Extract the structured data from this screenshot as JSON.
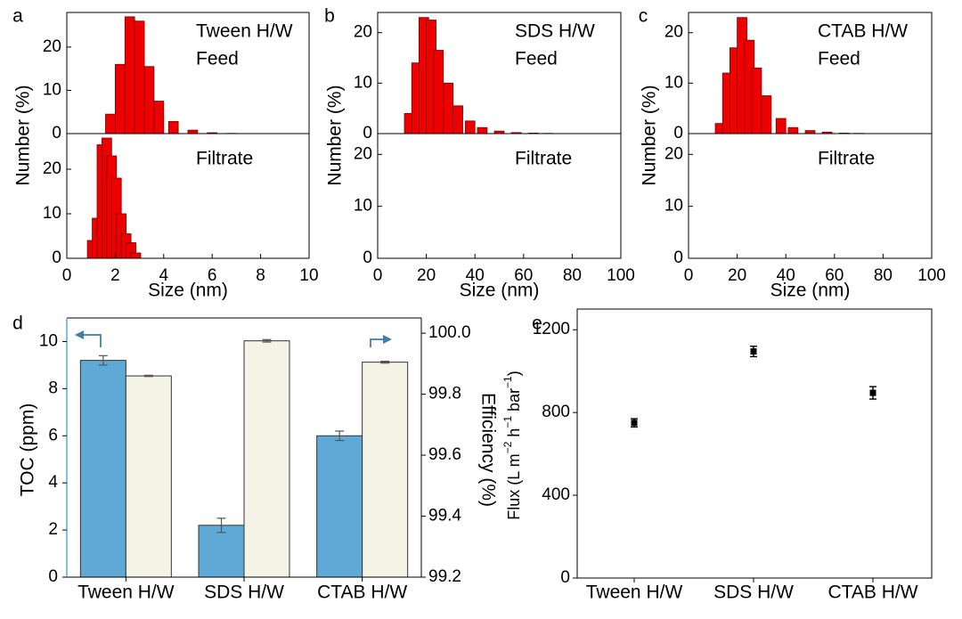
{
  "colors": {
    "hist_bar": "#ee0000",
    "hist_stroke": "#7a0000",
    "toc_bar": "#5ea9d6",
    "eff_bar": "#f4f4e6",
    "arrow": "#3f7fa8",
    "axis": "#000000"
  },
  "chart_data": [
    {
      "panel": "a",
      "type": "bar",
      "title_lines": [
        "Tween H/W",
        "Feed"
      ],
      "lower_title": "Filtrate",
      "xlabel": "Size (nm)",
      "ylabel": "Number (%)",
      "xlim": [
        0,
        10
      ],
      "xticks": [
        0,
        2,
        4,
        6,
        8,
        10
      ],
      "ylim": [
        0,
        28
      ],
      "yticks": [
        0,
        10,
        20
      ],
      "bin_width": 0.4,
      "feed": {
        "x": [
          1.8,
          2.2,
          2.6,
          3.0,
          3.4,
          3.8,
          4.4,
          5.2,
          6.0,
          6.8
        ],
        "values": [
          4.5,
          16,
          27,
          26,
          15.5,
          7.5,
          2.8,
          0.8,
          0.2,
          0.05
        ]
      },
      "filtrate": {
        "x": [
          1.05,
          1.25,
          1.45,
          1.65,
          1.85,
          2.05,
          2.25,
          2.45,
          2.65,
          2.85
        ],
        "values": [
          4,
          9,
          25.5,
          27,
          23,
          18,
          10,
          5.5,
          3.5,
          1.2
        ]
      }
    },
    {
      "panel": "b",
      "type": "bar",
      "title_lines": [
        "SDS H/W",
        "Feed"
      ],
      "lower_title": "Filtrate",
      "xlabel": "Size (nm)",
      "ylabel": "Number (%)",
      "xlim": [
        0,
        100
      ],
      "xticks": [
        0,
        20,
        40,
        60,
        80,
        100
      ],
      "ylim": [
        0,
        24
      ],
      "yticks": [
        0,
        10,
        20
      ],
      "bin_width": 4,
      "feed": {
        "x": [
          13,
          16,
          19,
          22,
          25,
          29,
          33,
          38,
          43,
          50,
          57,
          64,
          70
        ],
        "values": [
          4,
          14,
          23,
          22.5,
          16.5,
          10,
          5.5,
          2.5,
          1.2,
          0.5,
          0.2,
          0.1,
          0.05
        ]
      },
      "filtrate": {
        "x": [],
        "values": []
      }
    },
    {
      "panel": "c",
      "type": "bar",
      "title_lines": [
        "CTAB H/W",
        "Feed"
      ],
      "lower_title": "Filtrate",
      "xlabel": "Size (nm)",
      "ylabel": "Number (%)",
      "xlim": [
        0,
        100
      ],
      "xticks": [
        0,
        20,
        40,
        60,
        80,
        100
      ],
      "ylim": [
        0,
        24
      ],
      "yticks": [
        0,
        10,
        20
      ],
      "bin_width": 4,
      "feed": {
        "x": [
          13,
          16,
          19,
          22,
          25,
          28,
          32,
          38,
          43,
          50,
          57,
          64,
          70
        ],
        "values": [
          2,
          12,
          17,
          23,
          18.5,
          13,
          7.5,
          3,
          1.2,
          0.6,
          0.3,
          0.1,
          0.05
        ]
      },
      "filtrate": {
        "x": [],
        "values": []
      }
    },
    {
      "panel": "d",
      "type": "bar",
      "categories": [
        "Tween H/W",
        "SDS H/W",
        "CTAB H/W"
      ],
      "series": [
        {
          "name": "TOC",
          "axis": "left",
          "values": [
            9.2,
            2.2,
            6.0
          ],
          "errors": [
            0.2,
            0.3,
            0.2
          ]
        },
        {
          "name": "Efficiency",
          "axis": "right",
          "values": [
            99.86,
            99.975,
            99.905
          ],
          "errors": [
            0.002,
            0.004,
            0.003
          ]
        }
      ],
      "ylabel": "TOC (ppm)",
      "ylim": [
        0,
        11
      ],
      "yticks": [
        0,
        2,
        4,
        6,
        8,
        10
      ],
      "y2label": "Efficiency (%)",
      "y2lim": [
        99.2,
        100.05
      ],
      "y2ticks": [
        "99.2",
        "99.4",
        "99.6",
        "99.8",
        "100.0"
      ]
    },
    {
      "panel": "e",
      "type": "scatter",
      "categories": [
        "Tween H/W",
        "SDS H/W",
        "CTAB H/W"
      ],
      "values": [
        750,
        1095,
        895
      ],
      "errors": [
        20,
        25,
        30
      ],
      "ylabel_parts": [
        "Flux (L m",
        "−2",
        " h",
        "−1",
        " bar",
        "−1",
        ")"
      ],
      "ylim": [
        0,
        1300
      ],
      "yticks": [
        0,
        400,
        800,
        1200
      ]
    }
  ]
}
